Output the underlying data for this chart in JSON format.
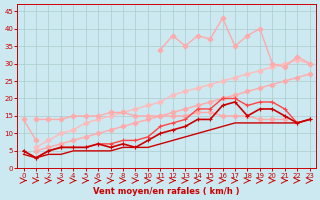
{
  "xlabel": "Vent moyen/en rafales ( km/h )",
  "background_color": "#cce8f0",
  "grid_color": "#aacccc",
  "ylim": [
    0,
    47
  ],
  "xlim": [
    -0.5,
    23.5
  ],
  "yticks": [
    0,
    5,
    10,
    15,
    20,
    25,
    30,
    35,
    40,
    45
  ],
  "xticks": [
    0,
    1,
    2,
    3,
    4,
    5,
    6,
    7,
    8,
    9,
    10,
    11,
    12,
    13,
    14,
    15,
    16,
    17,
    18,
    19,
    20,
    21,
    22,
    23
  ],
  "series": [
    {
      "x": [
        0,
        1
      ],
      "y": [
        14,
        8
      ],
      "color": "#ffaaaa",
      "lw": 1.0,
      "marker": "D",
      "ms": 2.5
    },
    {
      "x": [
        1,
        2,
        3,
        4,
        5,
        6,
        7,
        8,
        9,
        10,
        11,
        12,
        13,
        14,
        15,
        16,
        17,
        18,
        19,
        20,
        21,
        22,
        23
      ],
      "y": [
        5,
        6,
        7,
        8,
        9,
        10,
        11,
        12,
        13,
        14,
        15,
        16,
        17,
        18,
        19,
        20,
        21,
        22,
        23,
        24,
        25,
        26,
        27
      ],
      "color": "#ffaaaa",
      "lw": 1.0,
      "marker": "D",
      "ms": 2.5
    },
    {
      "x": [
        1,
        2,
        3,
        4,
        5,
        6,
        7,
        8,
        9,
        10,
        11,
        12,
        13,
        14,
        15,
        16,
        17,
        18,
        19,
        20,
        21,
        22,
        23
      ],
      "y": [
        6,
        8,
        10,
        11,
        13,
        14,
        15,
        16,
        17,
        18,
        19,
        21,
        22,
        23,
        24,
        25,
        26,
        27,
        28,
        29,
        30,
        31,
        30
      ],
      "color": "#ffbbbb",
      "lw": 1.0,
      "marker": "D",
      "ms": 2.5
    },
    {
      "x": [
        1,
        2,
        3,
        4,
        5,
        6,
        7,
        8,
        9,
        10,
        11,
        12,
        13,
        14,
        15,
        16,
        17,
        18,
        19,
        20,
        21
      ],
      "y": [
        14,
        14,
        14,
        15,
        15,
        15,
        16,
        16,
        15,
        15,
        15,
        15,
        15,
        16,
        16,
        15,
        15,
        15,
        14,
        14,
        14
      ],
      "color": "#ffaaaa",
      "lw": 1.0,
      "marker": "D",
      "ms": 2.5
    },
    {
      "x": [
        11,
        12,
        13,
        14,
        15,
        16,
        17,
        18,
        19,
        20,
        21,
        22,
        23
      ],
      "y": [
        34,
        38,
        35,
        38,
        37,
        43,
        35,
        38,
        40,
        30,
        29,
        32,
        30
      ],
      "color": "#ffaaaa",
      "lw": 1.0,
      "marker": "D",
      "ms": 2.5
    },
    {
      "x": [
        0,
        1,
        2,
        3,
        4,
        5,
        6,
        7,
        8,
        9,
        10,
        11,
        12,
        13,
        14,
        15,
        16,
        17,
        18,
        19,
        20,
        21,
        22,
        23
      ],
      "y": [
        5,
        3,
        5,
        6,
        6,
        6,
        7,
        7,
        8,
        8,
        9,
        12,
        13,
        14,
        17,
        17,
        20,
        20,
        18,
        19,
        19,
        17,
        13,
        14
      ],
      "color": "#ff4444",
      "lw": 1.0,
      "marker": "+",
      "ms": 3.5
    },
    {
      "x": [
        0,
        1,
        2,
        3,
        4,
        5,
        6,
        7,
        8,
        9,
        10,
        11,
        12,
        13,
        14,
        15,
        16,
        17,
        18,
        19,
        20,
        21,
        22,
        23
      ],
      "y": [
        5,
        3,
        5,
        6,
        6,
        6,
        7,
        6,
        7,
        6,
        8,
        10,
        11,
        12,
        14,
        14,
        18,
        19,
        15,
        17,
        17,
        15,
        13,
        14
      ],
      "color": "#cc0000",
      "lw": 1.2,
      "marker": "+",
      "ms": 3.5
    },
    {
      "x": [
        0,
        1,
        2,
        3,
        4,
        5,
        6,
        7,
        8,
        9,
        10,
        11,
        12,
        13,
        14,
        15,
        16,
        17,
        18,
        19,
        20,
        21,
        22,
        23
      ],
      "y": [
        4,
        3,
        4,
        4,
        5,
        5,
        5,
        5,
        6,
        6,
        6,
        7,
        8,
        9,
        10,
        11,
        12,
        13,
        13,
        13,
        13,
        13,
        13,
        14
      ],
      "color": "#cc0000",
      "lw": 1.0,
      "marker": null,
      "ms": 0
    }
  ],
  "arrow_color": "#cc0000",
  "tick_color": "#cc0000",
  "tick_fontsize": 5,
  "xlabel_fontsize": 6,
  "xlabel_fontweight": "bold"
}
